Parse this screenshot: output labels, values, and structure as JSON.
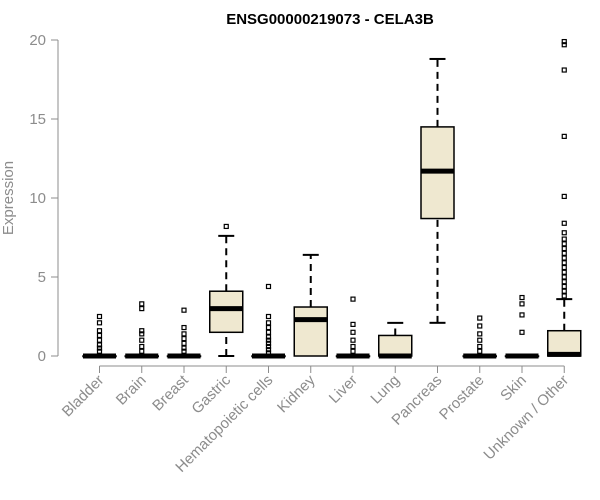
{
  "chart_data": {
    "type": "boxplot",
    "title": "ENSG00000219073 - CELA3B",
    "xlabel": "",
    "ylabel": "Expression",
    "ylim": [
      0,
      20
    ],
    "yticks": [
      0,
      5,
      10,
      15,
      20
    ],
    "grid": false,
    "box_fill": "#efe8d0",
    "categories": [
      "Bladder",
      "Brain",
      "Breast",
      "Gastric",
      "Hematopoietic cells",
      "Kidney",
      "Liver",
      "Lung",
      "Pancreas",
      "Prostate",
      "Skin",
      "Unknown / Other"
    ],
    "boxes": [
      {
        "category": "Bladder",
        "whisker_low": 0,
        "q1": 0,
        "median": 0,
        "q3": 0,
        "whisker_high": 0,
        "outliers": [
          0.3,
          0.5,
          0.7,
          1.0,
          1.3,
          1.6,
          2.1,
          2.5
        ]
      },
      {
        "category": "Brain",
        "whisker_low": 0,
        "q1": 0,
        "median": 0,
        "q3": 0,
        "whisker_high": 0,
        "outliers": [
          0.3,
          0.6,
          1.0,
          1.4,
          1.6,
          3.0,
          3.3
        ]
      },
      {
        "category": "Breast",
        "whisker_low": 0,
        "q1": 0,
        "median": 0,
        "q3": 0,
        "whisker_high": 0,
        "outliers": [
          0.3,
          0.5,
          0.8,
          1.1,
          1.4,
          1.8,
          2.9
        ]
      },
      {
        "category": "Gastric",
        "whisker_low": 0,
        "q1": 1.5,
        "median": 3.0,
        "q3": 4.1,
        "whisker_high": 7.6,
        "outliers": [
          8.2
        ]
      },
      {
        "category": "Hematopoietic cells",
        "whisker_low": 0,
        "q1": 0,
        "median": 0,
        "q3": 0,
        "whisker_high": 0,
        "outliers": [
          0.2,
          0.4,
          0.6,
          0.8,
          1.0,
          1.2,
          1.5,
          1.8,
          2.1,
          2.5,
          4.4
        ]
      },
      {
        "category": "Kidney",
        "whisker_low": 0,
        "q1": 0,
        "median": 2.3,
        "q3": 3.1,
        "whisker_high": 6.4,
        "outliers": []
      },
      {
        "category": "Liver",
        "whisker_low": 0,
        "q1": 0,
        "median": 0,
        "q3": 0,
        "whisker_high": 0,
        "outliers": [
          0.3,
          0.6,
          1.0,
          1.5,
          2.0,
          3.6
        ]
      },
      {
        "category": "Lung",
        "whisker_low": 0,
        "q1": 0,
        "median": 0,
        "q3": 1.3,
        "whisker_high": 2.1,
        "outliers": []
      },
      {
        "category": "Pancreas",
        "whisker_low": 2.1,
        "q1": 8.7,
        "median": 11.7,
        "q3": 14.5,
        "whisker_high": 18.8,
        "outliers": []
      },
      {
        "category": "Prostate",
        "whisker_low": 0,
        "q1": 0,
        "median": 0,
        "q3": 0,
        "whisker_high": 0,
        "outliers": [
          0.3,
          0.6,
          1.0,
          1.4,
          1.9,
          2.4
        ]
      },
      {
        "category": "Skin",
        "whisker_low": 0,
        "q1": 0,
        "median": 0,
        "q3": 0,
        "whisker_high": 0,
        "outliers": [
          1.5,
          2.6,
          3.3,
          3.7
        ]
      },
      {
        "category": "Unknown / Other",
        "whisker_low": 0,
        "q1": 0,
        "median": 0.1,
        "q3": 1.6,
        "whisker_high": 3.6,
        "outliers": [
          3.8,
          4.1,
          4.4,
          4.7,
          5.0,
          5.3,
          5.6,
          5.9,
          6.2,
          6.5,
          6.8,
          7.1,
          7.4,
          7.8,
          8.4,
          10.1,
          13.9,
          18.1,
          19.7,
          19.9
        ]
      }
    ]
  }
}
